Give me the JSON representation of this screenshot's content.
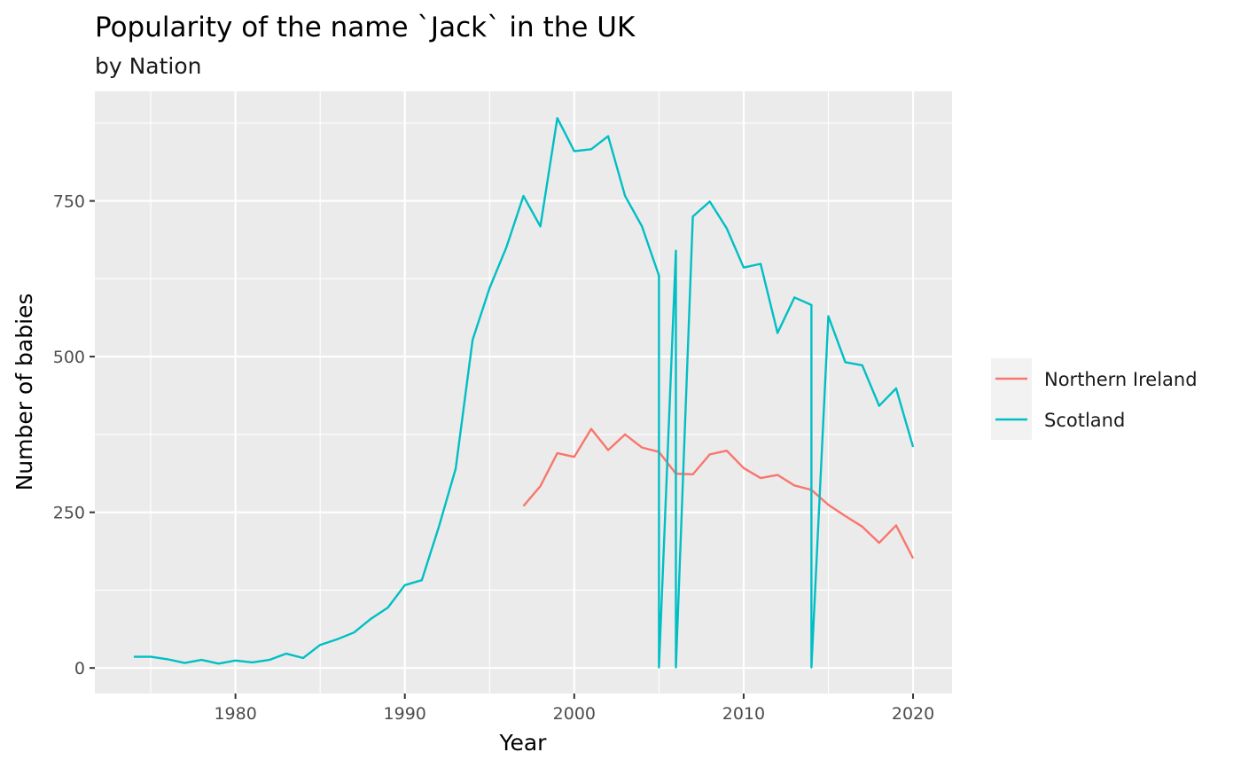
{
  "chart_data": {
    "type": "line",
    "title": "Popularity of the name `Jack` in the UK",
    "subtitle": "by Nation",
    "xlabel": "Year",
    "ylabel": "Number of babies",
    "xlim": [
      1971.7,
      2022.3
    ],
    "ylim": [
      -41,
      926
    ],
    "x_ticks": [
      1980,
      1990,
      2000,
      2010,
      2020
    ],
    "x_tick_labels": [
      "1980",
      "1990",
      "2000",
      "2010",
      "2020"
    ],
    "y_ticks": [
      0,
      250,
      500,
      750
    ],
    "y_tick_labels": [
      "0",
      "250",
      "500",
      "750"
    ],
    "grid": true,
    "legend_position": "right",
    "background": "#ebebeb",
    "series": [
      {
        "name": "Northern Ireland",
        "color": "#f8766d",
        "points": [
          [
            1997,
            260
          ],
          [
            1998,
            292
          ],
          [
            1999,
            345
          ],
          [
            2000,
            339
          ],
          [
            2001,
            384
          ],
          [
            2002,
            350
          ],
          [
            2003,
            375
          ],
          [
            2004,
            354
          ],
          [
            2005,
            347
          ],
          [
            2006,
            312
          ],
          [
            2007,
            311
          ],
          [
            2008,
            343
          ],
          [
            2009,
            349
          ],
          [
            2010,
            321
          ],
          [
            2011,
            305
          ],
          [
            2012,
            310
          ],
          [
            2013,
            293
          ],
          [
            2014,
            286
          ],
          [
            2015,
            262
          ],
          [
            2016,
            244
          ],
          [
            2017,
            227
          ],
          [
            2018,
            201
          ],
          [
            2019,
            229
          ],
          [
            2020,
            176
          ]
        ]
      },
      {
        "name": "Scotland",
        "color": "#00bfc4",
        "points": [
          [
            1974,
            18
          ],
          [
            1975,
            18
          ],
          [
            1976,
            14
          ],
          [
            1977,
            8
          ],
          [
            1978,
            13
          ],
          [
            1979,
            7
          ],
          [
            1980,
            12
          ],
          [
            1981,
            9
          ],
          [
            1982,
            13
          ],
          [
            1983,
            23
          ],
          [
            1984,
            16
          ],
          [
            1985,
            37
          ],
          [
            1986,
            46
          ],
          [
            1987,
            57
          ],
          [
            1988,
            79
          ],
          [
            1989,
            97
          ],
          [
            1990,
            133
          ],
          [
            1991,
            141
          ],
          [
            1992,
            226
          ],
          [
            1993,
            320
          ],
          [
            1994,
            527
          ],
          [
            1995,
            610
          ],
          [
            1996,
            676
          ],
          [
            1997,
            758
          ],
          [
            1998,
            709
          ],
          [
            1999,
            883
          ],
          [
            2000,
            830
          ],
          [
            2001,
            833
          ],
          [
            2002,
            854
          ],
          [
            2003,
            758
          ],
          [
            2004,
            709
          ],
          [
            2005,
            630
          ],
          [
            2005,
            1
          ],
          [
            2006,
            670
          ],
          [
            2006,
            1
          ],
          [
            2007,
            725
          ],
          [
            2008,
            749
          ],
          [
            2009,
            706
          ],
          [
            2010,
            643
          ],
          [
            2011,
            649
          ],
          [
            2012,
            538
          ],
          [
            2013,
            595
          ],
          [
            2014,
            583
          ],
          [
            2014,
            1
          ],
          [
            2015,
            565
          ],
          [
            2016,
            491
          ],
          [
            2017,
            486
          ],
          [
            2018,
            421
          ],
          [
            2019,
            449
          ],
          [
            2020,
            355
          ]
        ]
      }
    ]
  }
}
